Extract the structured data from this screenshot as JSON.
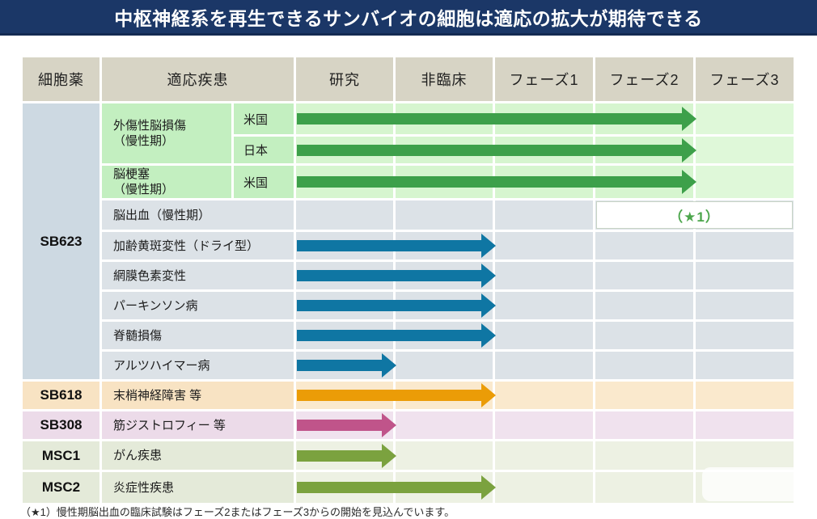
{
  "title": "中枢神経系を再生できるサンバイオの細胞は適応の拡大が期待できる",
  "table": {
    "headers": [
      "細胞薬",
      "適応疾患",
      "研究",
      "非臨床",
      "フェーズ1",
      "フェーズ2",
      "フェーズ3"
    ],
    "drugs": {
      "sb623": "SB623",
      "sb618": "SB618",
      "sb308": "SB308",
      "msc1": "MSC1",
      "msc2": "MSC2"
    },
    "rows": [
      {
        "drug": "SB623",
        "indication": "外傷性脳損傷\n（慢性期）",
        "country": "米国",
        "stage_reached": "フェーズ2",
        "arrow_color": "green"
      },
      {
        "drug": "SB623",
        "indication": "外傷性脳損傷\n（慢性期）",
        "country": "日本",
        "stage_reached": "フェーズ2",
        "arrow_color": "green"
      },
      {
        "drug": "SB623",
        "indication": "脳梗塞\n（慢性期）",
        "country": "米国",
        "stage_reached": "フェーズ2",
        "arrow_color": "green"
      },
      {
        "drug": "SB623",
        "indication": "脳出血（慢性期）",
        "annotation": "（★1）",
        "stage_reached": "フェーズ2またはフェーズ3から開始予定"
      },
      {
        "drug": "SB623",
        "indication": "加齢黄斑変性（ドライ型）",
        "stage_reached": "非臨床",
        "arrow_color": "blue"
      },
      {
        "drug": "SB623",
        "indication": "網膜色素変性",
        "stage_reached": "非臨床",
        "arrow_color": "blue"
      },
      {
        "drug": "SB623",
        "indication": "パーキンソン病",
        "stage_reached": "非臨床",
        "arrow_color": "blue"
      },
      {
        "drug": "SB623",
        "indication": "脊髄損傷",
        "stage_reached": "非臨床",
        "arrow_color": "blue"
      },
      {
        "drug": "SB623",
        "indication": "アルツハイマー病",
        "stage_reached": "研究",
        "arrow_color": "blue"
      },
      {
        "drug": "SB618",
        "indication": "末梢神経障害 等",
        "stage_reached": "非臨床",
        "arrow_color": "orange"
      },
      {
        "drug": "SB308",
        "indication": "筋ジストロフィー 等",
        "stage_reached": "研究",
        "arrow_color": "pink"
      },
      {
        "drug": "MSC1",
        "indication": "がん疾患",
        "stage_reached": "研究",
        "arrow_color": "olive"
      },
      {
        "drug": "MSC2",
        "indication": "炎症性疾患",
        "stage_reached": "非臨床",
        "arrow_color": "olive"
      }
    ]
  },
  "footnote": "（★1）慢性期脳出血の臨床試験はフェーズ2またはフェーズ3からの開始を見込んでいます。",
  "colors": {
    "title_bg": "#1b3767",
    "header_bg": "#d7d4c5",
    "arrow_green": "#3da04a",
    "arrow_blue": "#0f76a3",
    "arrow_orange": "#eb9c07",
    "arrow_pink": "#c0548a",
    "arrow_olive": "#7ba23f",
    "annotation_text": "#4ca64c",
    "sb623_column_bg": "#cdd9e2",
    "green_row_bg": "#d6f5cf",
    "gray_row_bg": "#dce2e7",
    "peach_row_bg": "#fae9cd",
    "pink_row_bg": "#f0e2ee",
    "msc_row_bg": "#edf1e3"
  }
}
